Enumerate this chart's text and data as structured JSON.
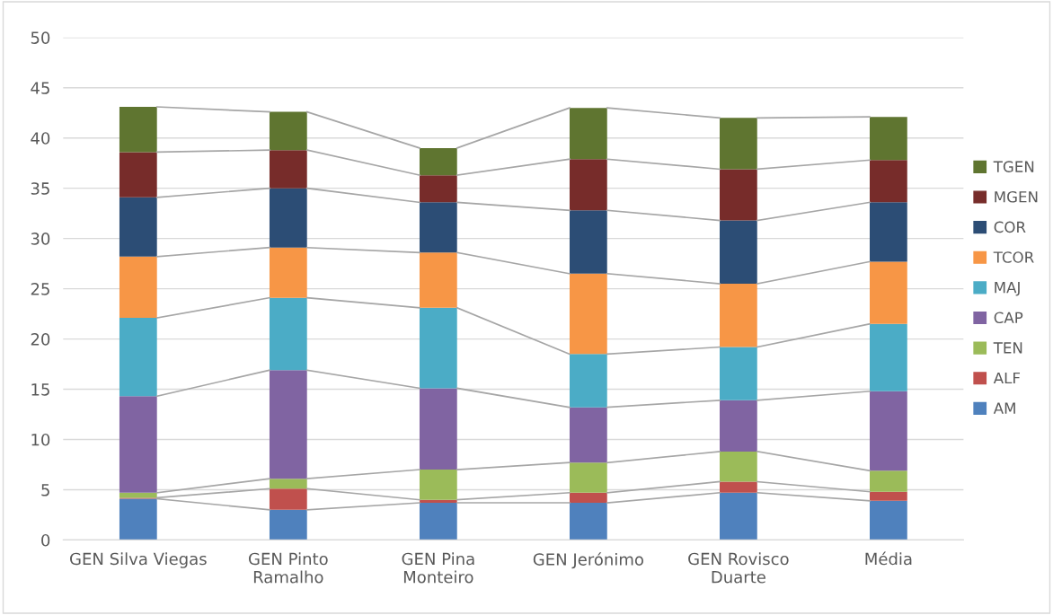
{
  "chart_data": {
    "type": "bar",
    "stacked": true,
    "categories": [
      "GEN Silva Viegas",
      "GEN Pinto Ramalho",
      "GEN Pina Monteiro",
      "GEN Jerónimo",
      "GEN Rovisco Duarte",
      "Média"
    ],
    "series": [
      {
        "name": "AM",
        "color": "#4f81bd",
        "values": [
          4.1,
          3.0,
          3.7,
          3.7,
          4.7,
          3.9
        ]
      },
      {
        "name": "ALF",
        "color": "#c0504d",
        "values": [
          0.1,
          2.1,
          0.3,
          1.0,
          1.1,
          0.9
        ]
      },
      {
        "name": "TEN",
        "color": "#9bbb59",
        "values": [
          0.5,
          1.0,
          3.0,
          3.0,
          3.0,
          2.1
        ]
      },
      {
        "name": "CAP",
        "color": "#8064a2",
        "values": [
          9.6,
          10.8,
          8.1,
          5.5,
          5.1,
          7.9
        ]
      },
      {
        "name": "MAJ",
        "color": "#4bacc6",
        "values": [
          7.8,
          7.2,
          8.0,
          5.3,
          5.3,
          6.7
        ]
      },
      {
        "name": "TCOR",
        "color": "#f79646",
        "values": [
          6.1,
          5.0,
          5.5,
          8.0,
          6.3,
          6.2
        ]
      },
      {
        "name": "COR",
        "color": "#2c4d75",
        "values": [
          5.9,
          5.9,
          5.0,
          6.3,
          6.3,
          5.9
        ]
      },
      {
        "name": "MGEN",
        "color": "#772c2a",
        "values": [
          4.5,
          3.8,
          2.7,
          5.1,
          5.1,
          4.2
        ]
      },
      {
        "name": "TGEN",
        "color": "#5f7530",
        "values": [
          4.5,
          3.8,
          2.7,
          5.1,
          5.1,
          4.3
        ]
      }
    ],
    "ylim": [
      0,
      50
    ],
    "yticks": [
      0,
      5,
      10,
      15,
      20,
      25,
      30,
      35,
      40,
      45,
      50
    ],
    "grid": "y",
    "legend": "right"
  }
}
